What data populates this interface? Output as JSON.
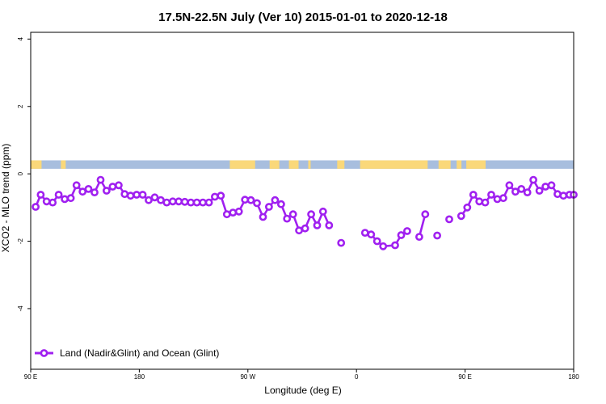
{
  "chart_data": {
    "type": "line",
    "title": "17.5N-22.5N July (Ver 10)   2015-01-01 to 2020-12-18",
    "xlabel": "Longitude (deg E)",
    "ylabel": "XCO2 - MLO trend (ppm)",
    "x_ticks": [
      {
        "value": 90,
        "label": "90 E"
      },
      {
        "value": 180,
        "label": "180"
      },
      {
        "value": 270,
        "label": "90 W"
      },
      {
        "value": 360,
        "label": "0"
      },
      {
        "value": 450,
        "label": "90 E"
      },
      {
        "value": 540,
        "label": "180"
      }
    ],
    "y_ticks": [
      {
        "value": 4,
        "label": "4"
      },
      {
        "value": 2,
        "label": "2"
      },
      {
        "value": 0,
        "label": "0"
      },
      {
        "value": -2,
        "label": "-2"
      },
      {
        "value": -4,
        "label": "-4"
      }
    ],
    "xlim": [
      90,
      540
    ],
    "ylim": [
      -5.8,
      4.2
    ],
    "grid": false,
    "legend_position": "bottom-left",
    "series": [
      {
        "name": "Land (Nadir&Glint) and Ocean (Glint)",
        "color": "#a020f0",
        "segments": [
          [
            [
              94.1,
              -0.98
            ],
            [
              98.3,
              -0.62
            ],
            [
              103.2,
              -0.82
            ],
            [
              108.2,
              -0.85
            ],
            [
              113.2,
              -0.62
            ],
            [
              118.2,
              -0.75
            ],
            [
              123.2,
              -0.72
            ],
            [
              128.0,
              -0.34
            ],
            [
              133.0,
              -0.53
            ],
            [
              137.9,
              -0.45
            ],
            [
              142.9,
              -0.55
            ],
            [
              147.9,
              -0.18
            ],
            [
              152.9,
              -0.5
            ],
            [
              157.9,
              -0.38
            ],
            [
              162.9,
              -0.34
            ],
            [
              167.9,
              -0.6
            ],
            [
              172.8,
              -0.65
            ],
            [
              177.8,
              -0.62
            ],
            [
              182.8,
              -0.62
            ],
            [
              187.8,
              -0.78
            ],
            [
              192.8,
              -0.7
            ],
            [
              197.8,
              -0.78
            ],
            [
              202.7,
              -0.85
            ],
            [
              207.7,
              -0.82
            ],
            [
              212.7,
              -0.82
            ],
            [
              217.7,
              -0.83
            ],
            [
              222.7,
              -0.85
            ],
            [
              227.7,
              -0.85
            ],
            [
              232.7,
              -0.85
            ],
            [
              237.7,
              -0.85
            ],
            [
              242.6,
              -0.68
            ],
            [
              247.6,
              -0.65
            ],
            [
              252.6,
              -1.2
            ],
            [
              257.6,
              -1.15
            ],
            [
              262.6,
              -1.12
            ],
            [
              267.6,
              -0.77
            ],
            [
              272.5,
              -0.78
            ],
            [
              277.5,
              -0.87
            ],
            [
              282.5,
              -1.28
            ],
            [
              287.5,
              -0.98
            ],
            [
              292.5,
              -0.78
            ],
            [
              297.5,
              -0.9
            ],
            [
              302.4,
              -1.33
            ],
            [
              307.4,
              -1.2
            ],
            [
              312.4,
              -1.68
            ],
            [
              317.4,
              -1.62
            ],
            [
              322.4,
              -1.2
            ],
            [
              327.4,
              -1.53
            ],
            [
              332.3,
              -1.12
            ],
            [
              337.3,
              -1.53
            ]
          ],
          [
            [
              347.3,
              -2.05
            ]
          ],
          [
            [
              367.1,
              -1.75
            ],
            [
              372.1,
              -1.8
            ],
            [
              377.1,
              -2.0
            ],
            [
              382.1,
              -2.15
            ],
            [
              392.0,
              -2.12
            ],
            [
              397.0,
              -1.82
            ],
            [
              402.0,
              -1.7
            ]
          ],
          [
            [
              412.0,
              -1.87
            ],
            [
              417.0,
              -1.2
            ]
          ],
          [
            [
              426.9,
              -1.83
            ]
          ],
          [
            [
              436.9,
              -1.35
            ]
          ],
          [
            [
              446.8,
              -1.25
            ],
            [
              451.8,
              -1.0
            ],
            [
              456.8,
              -0.62
            ],
            [
              461.8,
              -0.82
            ],
            [
              466.7,
              -0.85
            ],
            [
              471.7,
              -0.62
            ],
            [
              476.7,
              -0.75
            ],
            [
              481.7,
              -0.72
            ],
            [
              486.7,
              -0.34
            ],
            [
              491.7,
              -0.53
            ],
            [
              496.6,
              -0.45
            ],
            [
              501.6,
              -0.55
            ],
            [
              506.6,
              -0.18
            ],
            [
              511.6,
              -0.5
            ],
            [
              516.6,
              -0.38
            ],
            [
              521.6,
              -0.34
            ],
            [
              526.6,
              -0.6
            ],
            [
              531.5,
              -0.65
            ],
            [
              536.5,
              -0.62
            ],
            [
              540.0,
              -0.62
            ]
          ]
        ]
      }
    ],
    "land_mask": {
      "y_range": [
        0.15,
        0.4
      ],
      "colors": {
        "ocean": "#a8bede",
        "land": "#fad87a"
      },
      "land_intervals": [
        [
          90.0,
          99.0
        ],
        [
          115.0,
          119.0
        ],
        [
          255.0,
          276.0
        ],
        [
          288.0,
          296.0
        ],
        [
          304.0,
          312.0
        ],
        [
          320.0,
          322.0
        ],
        [
          344.0,
          350.0
        ],
        [
          363.0,
          419.0
        ],
        [
          428.0,
          438.0
        ],
        [
          443.0,
          447.0
        ],
        [
          451.0,
          467.0
        ]
      ]
    }
  }
}
